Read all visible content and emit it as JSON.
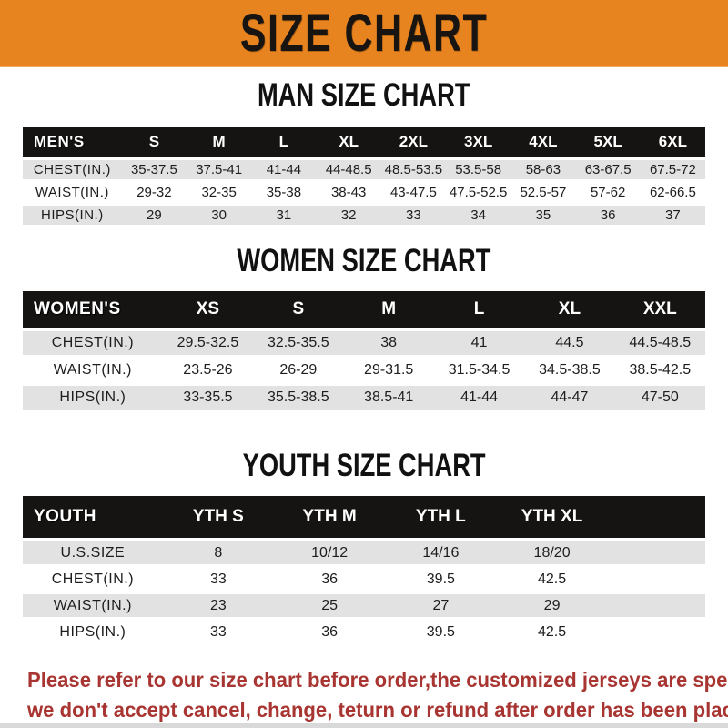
{
  "banner": {
    "title": "SIZE CHART",
    "bg_color": "#e8841f",
    "text_color": "#181411"
  },
  "sections": [
    {
      "heading": "MAN SIZE CHART",
      "label": "MEN'S",
      "columns": [
        "S",
        "M",
        "L",
        "XL",
        "2XL",
        "3XL",
        "4XL",
        "5XL",
        "6XL"
      ],
      "rows": [
        {
          "label": "CHEST(IN.)",
          "values": [
            "35-37.5",
            "37.5-41",
            "41-44",
            "44-48.5",
            "48.5-53.5",
            "53.5-58",
            "58-63",
            "63-67.5",
            "67.5-72"
          ]
        },
        {
          "label": "WAIST(IN.)",
          "values": [
            "29-32",
            "32-35",
            "35-38",
            "38-43",
            "43-47.5",
            "47.5-52.5",
            "52.5-57",
            "57-62",
            "62-66.5"
          ]
        },
        {
          "label": "HIPS(IN.)",
          "values": [
            "29",
            "30",
            "31",
            "32",
            "33",
            "34",
            "35",
            "36",
            "37"
          ]
        }
      ]
    },
    {
      "heading": "WOMEN SIZE CHART",
      "label": "WOMEN'S",
      "columns": [
        "XS",
        "S",
        "M",
        "L",
        "XL",
        "XXL"
      ],
      "rows": [
        {
          "label": "CHEST(IN.)",
          "values": [
            "29.5-32.5",
            "32.5-35.5",
            "38",
            "41",
            "44.5",
            "44.5-48.5"
          ]
        },
        {
          "label": "WAIST(IN.)",
          "values": [
            "23.5-26",
            "26-29",
            "29-31.5",
            "31.5-34.5",
            "34.5-38.5",
            "38.5-42.5"
          ]
        },
        {
          "label": "HIPS(IN.)",
          "values": [
            "33-35.5",
            "35.5-38.5",
            "38.5-41",
            "41-44",
            "44-47",
            "47-50"
          ]
        }
      ]
    },
    {
      "heading": "YOUTH SIZE CHART",
      "label": "YOUTH",
      "columns": [
        "YTH S",
        "YTH M",
        "YTH L",
        "YTH XL"
      ],
      "rows": [
        {
          "label": "U.S.SIZE",
          "values": [
            "8",
            "10/12",
            "14/16",
            "18/20"
          ]
        },
        {
          "label": "CHEST(IN.)",
          "values": [
            "33",
            "36",
            "39.5",
            "42.5"
          ]
        },
        {
          "label": "WAIST(IN.)",
          "values": [
            "23",
            "25",
            "27",
            "29"
          ]
        },
        {
          "label": "HIPS(IN.)",
          "values": [
            "33",
            "36",
            "39.5",
            "42.5"
          ]
        }
      ]
    }
  ],
  "disclaimer": {
    "line1": "Please refer to our size chart before order,the customized jerseys are special products,",
    "line2": "we don't accept cancel, change, teturn or refund after order has been placed!",
    "color": "#a83531"
  },
  "colors": {
    "banner_orange": "#e8841f",
    "header_bar_black": "#161412",
    "row_stripe_gray": "#e2e2e2",
    "body_text": "#1d1d1d"
  }
}
